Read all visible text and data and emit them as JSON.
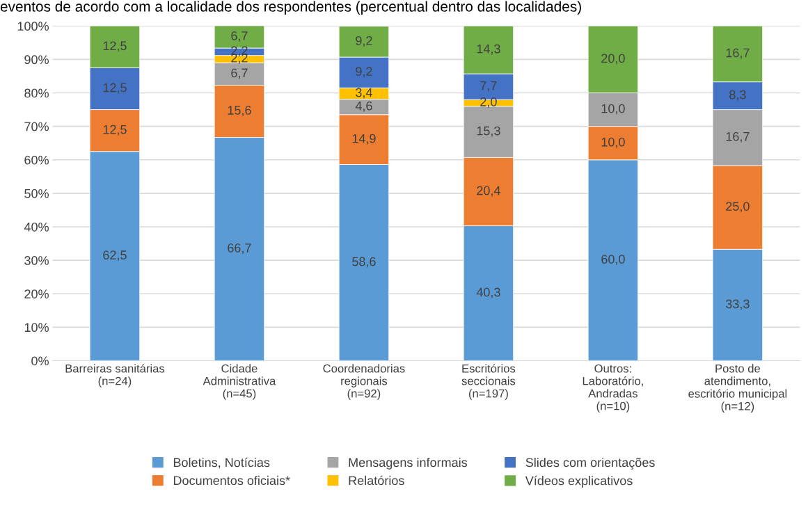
{
  "chart_data": {
    "type": "bar",
    "stacked": true,
    "title": "eventos de acordo com a localidade dos respondentes (percentual dentro das localidades)",
    "categories": [
      "Barreiras sanitárias\n(n=24)",
      "Cidade\nAdministrativa\n(n=45)",
      "Coordenadorias\nregionais\n(n=92)",
      "Escritórios\nseccionais\n(n=197)",
      "Outros:\nLaboratório,\nAndradas\n(n=10)",
      "Posto de\natendimento,\nescritório municipal\n(n=12)"
    ],
    "series": [
      {
        "name": "Boletins, Notícias",
        "color": "#5b9bd5",
        "values": [
          62.5,
          66.7,
          58.6,
          40.3,
          60.0,
          33.3
        ],
        "value_labels": [
          "62,5",
          "66,7",
          "58,6",
          "40,3",
          "60,0",
          "33,3"
        ]
      },
      {
        "name": "Documentos oficiais*",
        "color": "#ed7d31",
        "values": [
          12.5,
          15.6,
          14.9,
          20.4,
          10.0,
          25.0
        ],
        "value_labels": [
          "12,5",
          "15,6",
          "14,9",
          "20,4",
          "10,0",
          "25,0"
        ]
      },
      {
        "name": "Mensagens informais",
        "color": "#a5a5a5",
        "values": [
          null,
          6.7,
          4.6,
          15.3,
          10.0,
          16.7
        ],
        "value_labels": [
          null,
          "6,7",
          "4,6",
          "15,3",
          "10,0",
          "16,7"
        ]
      },
      {
        "name": "Relatórios",
        "color": "#ffc000",
        "values": [
          null,
          2.2,
          3.4,
          2.0,
          null,
          null
        ],
        "value_labels": [
          null,
          "2,2",
          "3,4",
          "2,0",
          null,
          null
        ]
      },
      {
        "name": "Slides com orientações",
        "color": "#4472c4",
        "values": [
          12.5,
          2.2,
          9.2,
          7.7,
          null,
          8.3
        ],
        "value_labels": [
          "12,5",
          "2,2",
          "9,2",
          "7,7",
          null,
          "8,3"
        ]
      },
      {
        "name": "Vídeos explicativos",
        "color": "#70ad47",
        "values": [
          12.5,
          6.7,
          9.2,
          14.3,
          20.0,
          16.7
        ],
        "value_labels": [
          "12,5",
          "6,7",
          "9,2",
          "14,3",
          "20,0",
          "16,7"
        ]
      }
    ],
    "ylim": [
      0,
      100
    ],
    "yticks": [
      {
        "value": 0,
        "label": "0%"
      },
      {
        "value": 10,
        "label": "10%"
      },
      {
        "value": 20,
        "label": "20%"
      },
      {
        "value": 30,
        "label": "30%"
      },
      {
        "value": 40,
        "label": "40%"
      },
      {
        "value": 50,
        "label": "50%"
      },
      {
        "value": 60,
        "label": "60%"
      },
      {
        "value": 70,
        "label": "70%"
      },
      {
        "value": 80,
        "label": "80%"
      },
      {
        "value": 90,
        "label": "90%"
      },
      {
        "value": 100,
        "label": "100%"
      }
    ],
    "grid": "y",
    "legend": "bottom"
  }
}
